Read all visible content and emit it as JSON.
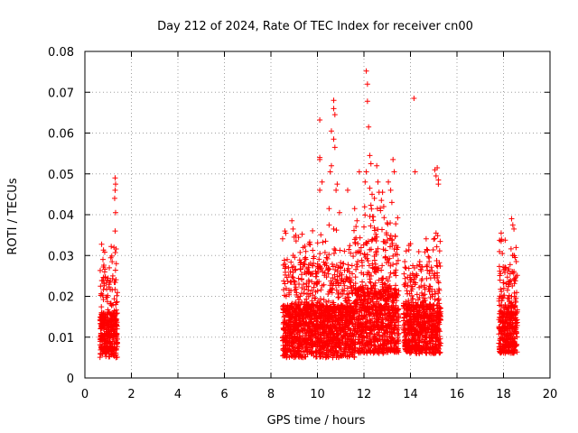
{
  "chart_data": {
    "type": "scatter",
    "title": "Day 212 of 2024, Rate Of TEC Index for receiver cn00",
    "xlabel": "GPS time / hours",
    "ylabel": "ROTI / TECUs",
    "xlim": [
      0,
      20
    ],
    "ylim": [
      0,
      0.08
    ],
    "xticks": [
      "0",
      "2",
      "4",
      "6",
      "8",
      "10",
      "12",
      "14",
      "16",
      "18",
      "20"
    ],
    "yticks": [
      "0",
      "0.01",
      "0.02",
      "0.03",
      "0.04",
      "0.05",
      "0.06",
      "0.07",
      "0.08"
    ],
    "grid": true,
    "marker": "+",
    "color": "#ff0000",
    "series": [
      {
        "name": "ROTI",
        "clusters": [
          {
            "x_range": [
              0.65,
              1.4
            ],
            "count": 380,
            "typical": [
              0.005,
              0.016
            ]
          },
          {
            "x_range": [
              8.5,
              11.6
            ],
            "count": 1500,
            "typical": [
              0.005,
              0.018
            ]
          },
          {
            "x_range": [
              11.6,
              13.5
            ],
            "count": 900,
            "typical": [
              0.006,
              0.022
            ]
          },
          {
            "x_range": [
              13.7,
              15.3
            ],
            "count": 750,
            "typical": [
              0.006,
              0.018
            ]
          },
          {
            "x_range": [
              17.8,
              18.6
            ],
            "count": 380,
            "typical": [
              0.006,
              0.018
            ]
          }
        ],
        "outliers": [
          {
            "x": 1.3,
            "y": 0.049
          },
          {
            "x": 1.32,
            "y": 0.0475
          },
          {
            "x": 1.3,
            "y": 0.046
          },
          {
            "x": 1.28,
            "y": 0.044
          },
          {
            "x": 1.32,
            "y": 0.0405
          },
          {
            "x": 1.3,
            "y": 0.036
          },
          {
            "x": 1.25,
            "y": 0.032
          },
          {
            "x": 1.35,
            "y": 0.028
          },
          {
            "x": 0.85,
            "y": 0.026
          },
          {
            "x": 1.05,
            "y": 0.027
          },
          {
            "x": 1.2,
            "y": 0.025
          },
          {
            "x": 8.6,
            "y": 0.036
          },
          {
            "x": 8.9,
            "y": 0.0385
          },
          {
            "x": 8.95,
            "y": 0.0365
          },
          {
            "x": 9.0,
            "y": 0.0345
          },
          {
            "x": 8.7,
            "y": 0.029
          },
          {
            "x": 9.5,
            "y": 0.031
          },
          {
            "x": 9.8,
            "y": 0.0275
          },
          {
            "x": 10.1,
            "y": 0.0632
          },
          {
            "x": 10.1,
            "y": 0.054
          },
          {
            "x": 10.1,
            "y": 0.0535
          },
          {
            "x": 10.1,
            "y": 0.046
          },
          {
            "x": 10.2,
            "y": 0.048
          },
          {
            "x": 10.5,
            "y": 0.0415
          },
          {
            "x": 10.5,
            "y": 0.0375
          },
          {
            "x": 10.6,
            "y": 0.052
          },
          {
            "x": 10.55,
            "y": 0.0505
          },
          {
            "x": 10.7,
            "y": 0.068
          },
          {
            "x": 10.7,
            "y": 0.066
          },
          {
            "x": 10.75,
            "y": 0.0645
          },
          {
            "x": 10.6,
            "y": 0.0605
          },
          {
            "x": 10.7,
            "y": 0.0585
          },
          {
            "x": 10.75,
            "y": 0.0565
          },
          {
            "x": 10.85,
            "y": 0.0475
          },
          {
            "x": 10.8,
            "y": 0.046
          },
          {
            "x": 10.95,
            "y": 0.0405
          },
          {
            "x": 10.7,
            "y": 0.0365
          },
          {
            "x": 11.3,
            "y": 0.046
          },
          {
            "x": 11.35,
            "y": 0.0315
          },
          {
            "x": 12.1,
            "y": 0.0752
          },
          {
            "x": 12.15,
            "y": 0.072
          },
          {
            "x": 12.15,
            "y": 0.0678
          },
          {
            "x": 12.2,
            "y": 0.0615
          },
          {
            "x": 12.25,
            "y": 0.0545
          },
          {
            "x": 12.3,
            "y": 0.0525
          },
          {
            "x": 12.1,
            "y": 0.0505
          },
          {
            "x": 11.8,
            "y": 0.0505
          },
          {
            "x": 12.05,
            "y": 0.048
          },
          {
            "x": 12.25,
            "y": 0.0465
          },
          {
            "x": 12.35,
            "y": 0.045
          },
          {
            "x": 12.45,
            "y": 0.044
          },
          {
            "x": 12.55,
            "y": 0.052
          },
          {
            "x": 12.6,
            "y": 0.048
          },
          {
            "x": 12.65,
            "y": 0.0455
          },
          {
            "x": 12.75,
            "y": 0.0435
          },
          {
            "x": 12.8,
            "y": 0.0455
          },
          {
            "x": 12.85,
            "y": 0.042
          },
          {
            "x": 13.05,
            "y": 0.048
          },
          {
            "x": 13.15,
            "y": 0.046
          },
          {
            "x": 13.25,
            "y": 0.0535
          },
          {
            "x": 13.3,
            "y": 0.0505
          },
          {
            "x": 13.2,
            "y": 0.043
          },
          {
            "x": 11.6,
            "y": 0.0415
          },
          {
            "x": 11.7,
            "y": 0.0385
          },
          {
            "x": 12.0,
            "y": 0.037
          },
          {
            "x": 12.4,
            "y": 0.0395
          },
          {
            "x": 13.0,
            "y": 0.038
          },
          {
            "x": 14.15,
            "y": 0.0685
          },
          {
            "x": 14.2,
            "y": 0.0505
          },
          {
            "x": 15.05,
            "y": 0.051
          },
          {
            "x": 15.1,
            "y": 0.0495
          },
          {
            "x": 15.15,
            "y": 0.0515
          },
          {
            "x": 15.2,
            "y": 0.0485
          },
          {
            "x": 15.2,
            "y": 0.0475
          },
          {
            "x": 15.1,
            "y": 0.0355
          },
          {
            "x": 15.0,
            "y": 0.034
          },
          {
            "x": 14.7,
            "y": 0.0315
          },
          {
            "x": 14.4,
            "y": 0.0285
          },
          {
            "x": 17.9,
            "y": 0.0355
          },
          {
            "x": 17.9,
            "y": 0.0335
          },
          {
            "x": 17.95,
            "y": 0.0305
          },
          {
            "x": 18.35,
            "y": 0.039
          },
          {
            "x": 18.4,
            "y": 0.0375
          },
          {
            "x": 18.45,
            "y": 0.0365
          },
          {
            "x": 18.5,
            "y": 0.0295
          },
          {
            "x": 18.55,
            "y": 0.0285
          },
          {
            "x": 18.1,
            "y": 0.027
          }
        ]
      }
    ]
  }
}
